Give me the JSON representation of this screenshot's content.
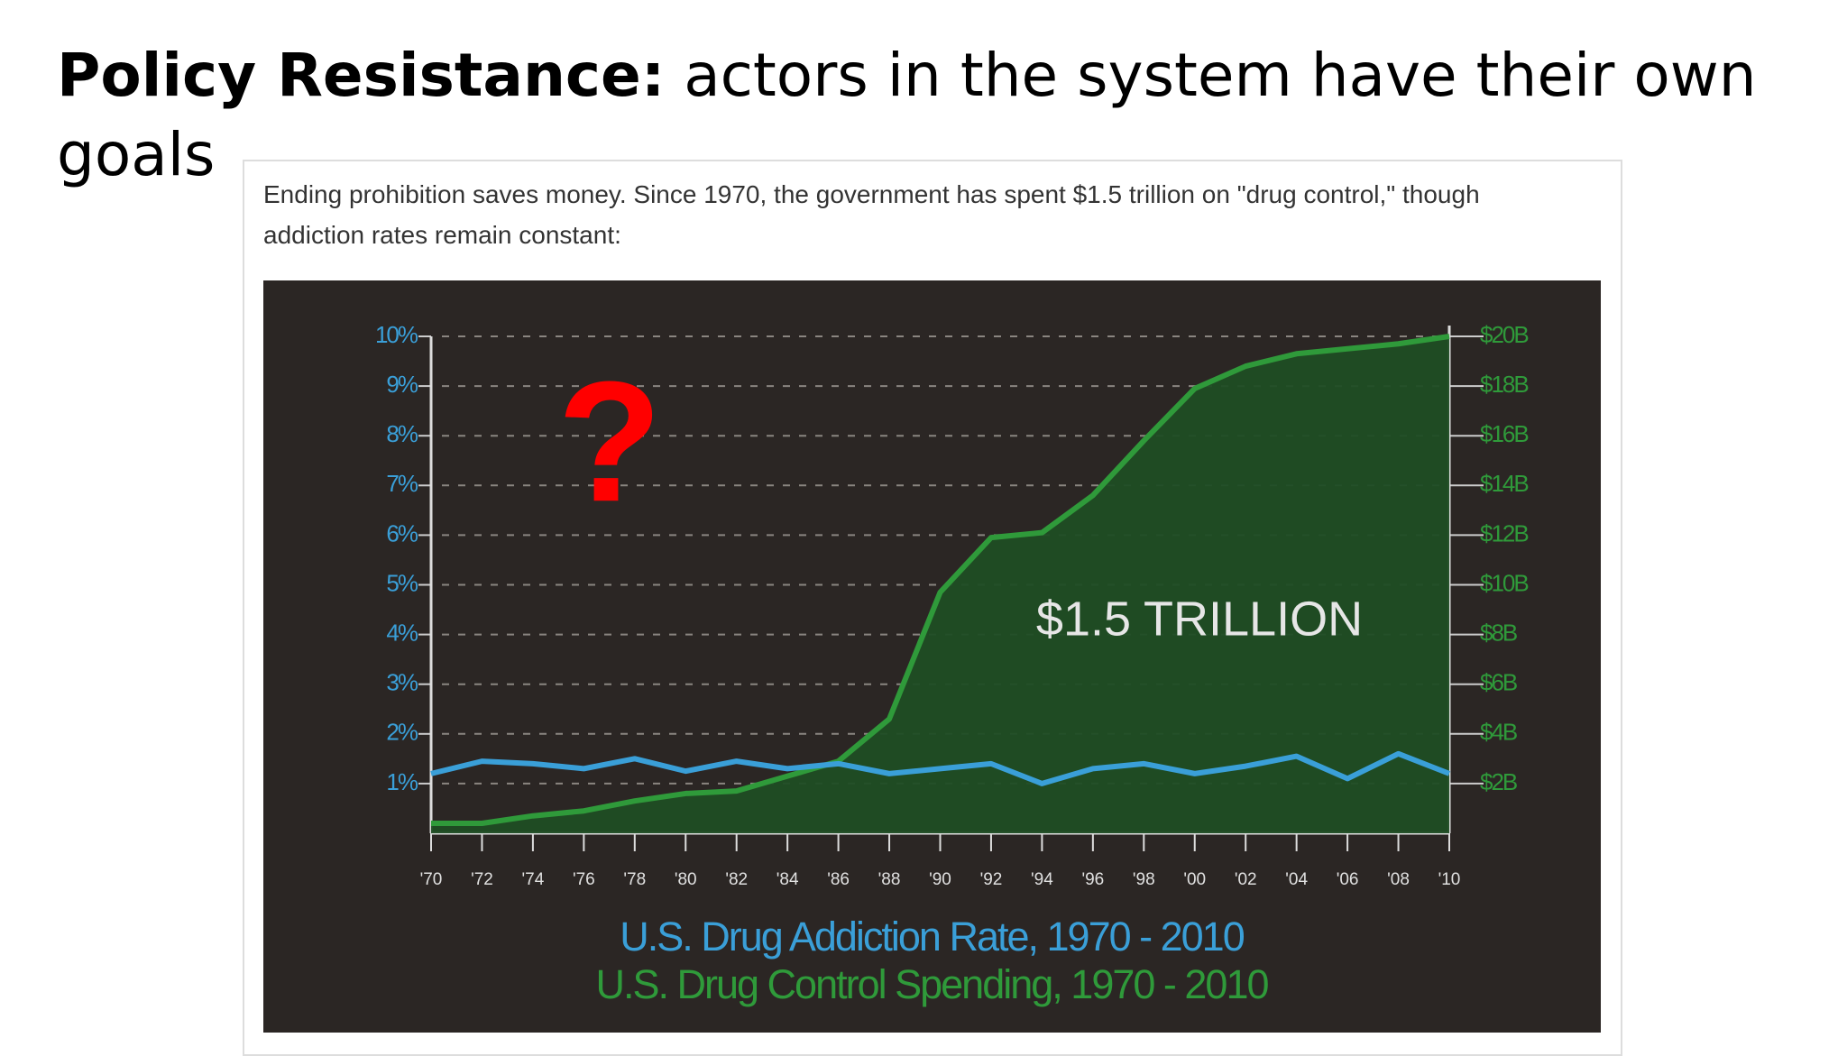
{
  "slide": {
    "title_bold": "Policy Resistance:",
    "title_rest": " actors in the system have their own goals"
  },
  "chart_data": {
    "type": "line",
    "subtitle": "Ending prohibition saves money. Since 1970, the government has spent $1.5 trillion on \"drug control,\" though addiction rates remain constant:",
    "annotations": [
      "$1.5 TRILLION",
      "?"
    ],
    "categories": [
      "'70",
      "'72",
      "'74",
      "'76",
      "'78",
      "'80",
      "'82",
      "'84",
      "'86",
      "'88",
      "'90",
      "'92",
      "'94",
      "'96",
      "'98",
      "'00",
      "'02",
      "'04",
      "'06",
      "'08",
      "'10"
    ],
    "series": [
      {
        "name": "U.S. Drug Addiction Rate, 1970 - 2010",
        "color": "#3a9fd8",
        "axis": "y",
        "values": [
          1.2,
          1.45,
          1.4,
          1.3,
          1.5,
          1.25,
          1.45,
          1.3,
          1.4,
          1.2,
          1.3,
          1.4,
          1.0,
          1.3,
          1.4,
          1.2,
          1.35,
          1.55,
          1.1,
          1.6,
          1.2
        ]
      },
      {
        "name": "U.S. Drug Control Spending, 1970 - 2010",
        "color": "#2f9a3a",
        "axis": "y2",
        "area": true,
        "values": [
          0.4,
          0.4,
          0.7,
          0.9,
          1.3,
          1.6,
          1.7,
          2.3,
          2.9,
          4.6,
          9.7,
          11.9,
          12.1,
          13.6,
          15.8,
          17.9,
          18.8,
          19.3,
          19.5,
          19.7,
          20.0
        ]
      }
    ],
    "ylim": [
      0,
      10
    ],
    "yticks": [
      {
        "value": 1,
        "label": "1%"
      },
      {
        "value": 2,
        "label": "2%"
      },
      {
        "value": 3,
        "label": "3%"
      },
      {
        "value": 4,
        "label": "4%"
      },
      {
        "value": 5,
        "label": "5%"
      },
      {
        "value": 6,
        "label": "6%"
      },
      {
        "value": 7,
        "label": "7%"
      },
      {
        "value": 8,
        "label": "8%"
      },
      {
        "value": 9,
        "label": "9%"
      },
      {
        "value": 10,
        "label": "10%"
      }
    ],
    "y2lim": [
      0,
      20
    ],
    "y2ticks": [
      {
        "value": 2,
        "label": "$2B"
      },
      {
        "value": 4,
        "label": "$4B"
      },
      {
        "value": 6,
        "label": "$6B"
      },
      {
        "value": 8,
        "label": "$8B"
      },
      {
        "value": 10,
        "label": "$10B"
      },
      {
        "value": 12,
        "label": "$12B"
      },
      {
        "value": 14,
        "label": "$14B"
      },
      {
        "value": 16,
        "label": "$16B"
      },
      {
        "value": 18,
        "label": "$18B"
      },
      {
        "value": 20,
        "label": "$20B"
      }
    ],
    "grid": true
  }
}
